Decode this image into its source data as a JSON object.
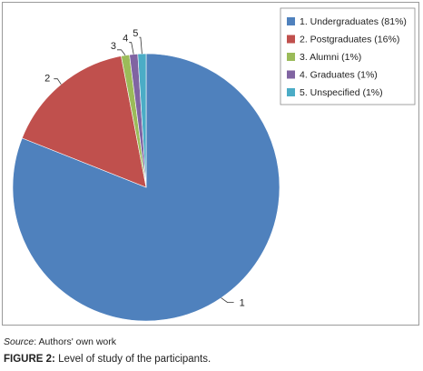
{
  "chart_data": {
    "type": "pie",
    "categories": [
      "1. Undergraduates (81%)",
      "2. Postgraduates (16%)",
      "3. Alumni (1%)",
      "4. Graduates (1%)",
      "5. Unspecified (1%)"
    ],
    "slice_labels": [
      "1",
      "2",
      "3",
      "4",
      "5"
    ],
    "values": [
      81,
      16,
      1,
      1,
      1
    ],
    "colors": [
      "#4f81bd",
      "#c0504d",
      "#9bbb59",
      "#8064a2",
      "#4bacc6"
    ],
    "legend_position": "top-right"
  },
  "source": {
    "label": "Source",
    "text": ": Authors' own work"
  },
  "caption": {
    "label": "FIGURE 2:",
    "text": " Level of study of the participants."
  }
}
